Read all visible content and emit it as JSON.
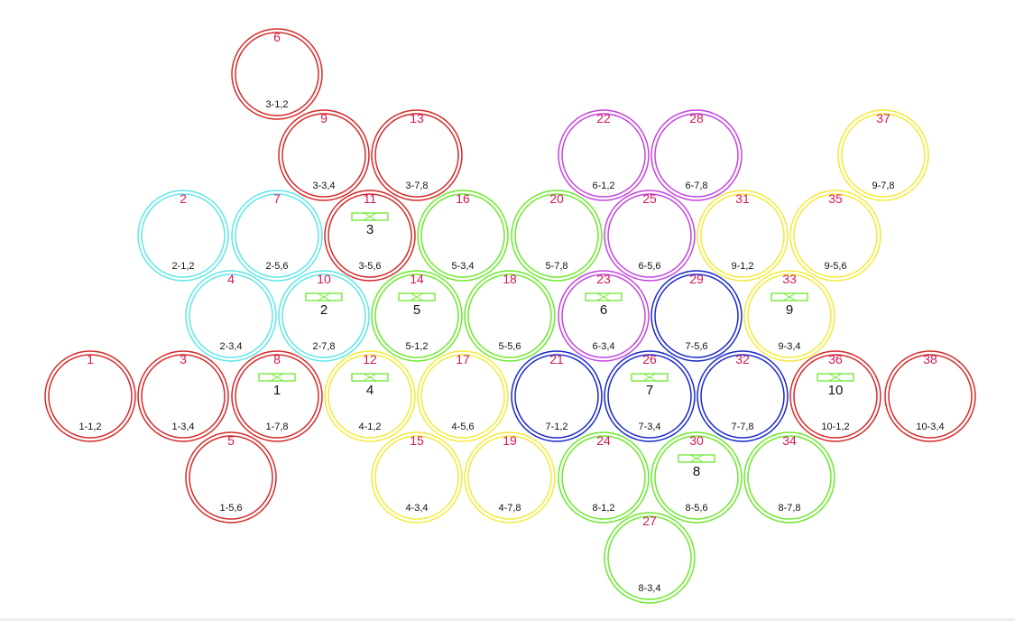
{
  "colors": {
    "red": "#d42a2a",
    "cyan": "#5fe6e6",
    "green": "#6de82e",
    "yellow": "#f2ea3a",
    "magenta": "#c444dd",
    "blue": "#1a28c8",
    "number_text": "#d6185a",
    "label_text": "#111111"
  },
  "circles": [
    {
      "num": "1",
      "label": "1-1,2",
      "color": "red"
    },
    {
      "num": "3",
      "label": "1-3,4",
      "color": "red"
    },
    {
      "num": "8",
      "label": "1-7,8",
      "color": "red",
      "group": "1"
    },
    {
      "num": "5",
      "label": "1-5,6",
      "color": "red"
    },
    {
      "num": "2",
      "label": "2-1,2",
      "color": "cyan"
    },
    {
      "num": "7",
      "label": "2-5,6",
      "color": "cyan"
    },
    {
      "num": "4",
      "label": "2-3,4",
      "color": "cyan"
    },
    {
      "num": "10",
      "label": "2-7,8",
      "color": "cyan",
      "group": "2"
    },
    {
      "num": "6",
      "label": "3-1,2",
      "color": "red"
    },
    {
      "num": "9",
      "label": "3-3,4",
      "color": "red"
    },
    {
      "num": "13",
      "label": "3-7,8",
      "color": "red"
    },
    {
      "num": "11",
      "label": "3-5,6",
      "color": "red",
      "group": "3"
    },
    {
      "num": "12",
      "label": "4-1,2",
      "color": "yellow",
      "group": "4"
    },
    {
      "num": "17",
      "label": "4-5,6",
      "color": "yellow"
    },
    {
      "num": "15",
      "label": "4-3,4",
      "color": "yellow"
    },
    {
      "num": "19",
      "label": "4-7,8",
      "color": "yellow"
    },
    {
      "num": "16",
      "label": "5-3,4",
      "color": "green"
    },
    {
      "num": "20",
      "label": "5-7,8",
      "color": "green"
    },
    {
      "num": "14",
      "label": "5-1,2",
      "color": "green",
      "group": "5"
    },
    {
      "num": "18",
      "label": "5-5,6",
      "color": "green"
    },
    {
      "num": "22",
      "label": "6-1,2",
      "color": "magenta"
    },
    {
      "num": "28",
      "label": "6-7,8",
      "color": "magenta"
    },
    {
      "num": "25",
      "label": "6-5,6",
      "color": "magenta"
    },
    {
      "num": "23",
      "label": "6-3,4",
      "color": "magenta",
      "group": "6"
    },
    {
      "num": "29",
      "label": "7-5,6",
      "color": "blue"
    },
    {
      "num": "21",
      "label": "7-1,2",
      "color": "blue"
    },
    {
      "num": "26",
      "label": "7-3,4",
      "color": "blue",
      "group": "7"
    },
    {
      "num": "32",
      "label": "7-7,8",
      "color": "blue"
    },
    {
      "num": "24",
      "label": "8-1,2",
      "color": "green"
    },
    {
      "num": "30",
      "label": "8-5,6",
      "color": "green",
      "group": "8"
    },
    {
      "num": "34",
      "label": "8-7,8",
      "color": "green"
    },
    {
      "num": "27",
      "label": "8-3,4",
      "color": "green"
    },
    {
      "num": "37",
      "label": "9-7,8",
      "color": "yellow"
    },
    {
      "num": "31",
      "label": "9-1,2",
      "color": "yellow"
    },
    {
      "num": "35",
      "label": "9-5,6",
      "color": "yellow"
    },
    {
      "num": "33",
      "label": "9-3,4",
      "color": "yellow",
      "group": "9"
    },
    {
      "num": "36",
      "label": "10-1,2",
      "color": "red",
      "group": "10"
    },
    {
      "num": "38",
      "label": "10-3,4",
      "color": "red"
    }
  ]
}
